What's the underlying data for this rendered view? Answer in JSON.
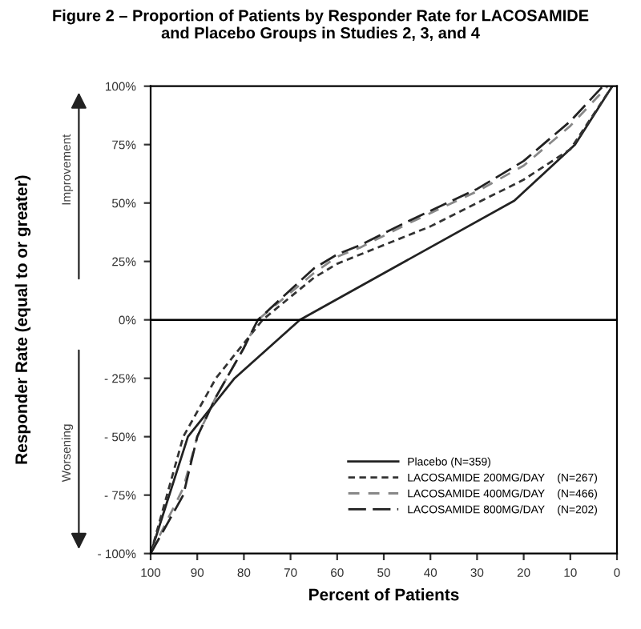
{
  "chart_data": {
    "type": "line",
    "title": "Figure 2 – Proportion of Patients by Responder Rate for LACOSAMIDE\nand Placebo Groups in Studies 2, 3, and 4",
    "xlabel": "Percent of Patients",
    "ylabel": "Responder Rate (equal to or greater)",
    "annotations": [
      "Improvement",
      "Worsening"
    ],
    "xlim": [
      100,
      0
    ],
    "xticks": [
      100,
      90,
      80,
      70,
      60,
      50,
      40,
      30,
      20,
      10,
      0
    ],
    "ylim": [
      -100,
      100
    ],
    "yticks": [
      {
        "value": -100,
        "label": "- 100%"
      },
      {
        "value": -75,
        "label": "- 75%"
      },
      {
        "value": -50,
        "label": "- 50%"
      },
      {
        "value": -25,
        "label": "- 25%"
      },
      {
        "value": 0,
        "label": "0%"
      },
      {
        "value": 25,
        "label": "25%"
      },
      {
        "value": 50,
        "label": "50%"
      },
      {
        "value": 75,
        "label": "75%"
      },
      {
        "value": 100,
        "label": "100%"
      }
    ],
    "ref_lines": [
      {
        "axis": "y",
        "value": 0,
        "label": null,
        "color": "#000000"
      }
    ],
    "grid": false,
    "legend": "bottom right",
    "marker": "none",
    "series": [
      {
        "name": "Placebo (N=359)",
        "color": "#222222",
        "line_style": "solid",
        "x": [
          100,
          92,
          82,
          68,
          22,
          9,
          1
        ],
        "values": [
          -100,
          -50,
          -25,
          0,
          51,
          75,
          100
        ]
      },
      {
        "name": "LACOSAMIDE 200MG/DAY    (N=267)",
        "color": "#333333",
        "line_style": "dashed",
        "x": [
          100,
          93,
          86,
          78,
          76,
          65,
          60,
          40,
          20,
          10,
          1
        ],
        "values": [
          -100,
          -50,
          -25,
          -5,
          0,
          18,
          24,
          40,
          60,
          73,
          100
        ]
      },
      {
        "name": "LACOSAMIDE 400MG/DAY    (N=466)",
        "color": "#888888",
        "line_style": "dashed",
        "x": [
          100,
          93,
          90,
          86,
          80,
          77,
          65,
          60,
          55,
          45,
          30,
          20,
          10,
          2
        ],
        "values": [
          -100,
          -72,
          -50,
          -33,
          -12,
          0,
          20,
          27,
          31,
          41,
          55,
          66,
          83,
          100
        ]
      },
      {
        "name": "LACOSAMIDE 800MG/DAY    (N=202)",
        "color": "#222222",
        "line_style": "dashed",
        "x": [
          100,
          93,
          90,
          86,
          80,
          77,
          65,
          60,
          55,
          45,
          30,
          20,
          10,
          3
        ],
        "values": [
          -100,
          -75,
          -50,
          -33,
          -12,
          0,
          22,
          28,
          32,
          42,
          56,
          68,
          85,
          100
        ]
      }
    ]
  }
}
